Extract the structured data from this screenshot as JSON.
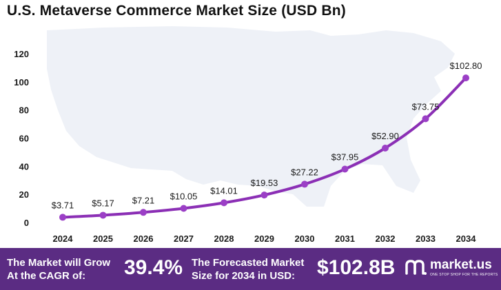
{
  "title": "U.S. Metaverse Commerce Market Size (USD Bn)",
  "chart_data": {
    "type": "line",
    "title": "U.S. Metaverse Commerce Market Size (USD Bn)",
    "categories": [
      "2024",
      "2025",
      "2026",
      "2027",
      "2028",
      "2029",
      "2030",
      "2031",
      "2032",
      "2033",
      "2034"
    ],
    "values": [
      3.71,
      5.17,
      7.21,
      10.05,
      14.01,
      19.53,
      27.22,
      37.95,
      52.9,
      73.75,
      102.8
    ],
    "data_labels": [
      "$3.71",
      "$5.17",
      "$7.21",
      "$10.05",
      "$14.01",
      "$19.53",
      "$27.22",
      "$37.95",
      "$52.90",
      "$73.75",
      "$102.80"
    ],
    "y_ticks": [
      0,
      20,
      40,
      60,
      80,
      100,
      120
    ],
    "ylim": [
      0,
      120
    ],
    "xlabel": "",
    "ylabel": "",
    "grid": false,
    "legend": "none",
    "line_color": "#8b2fb5",
    "marker_color": "#9b3fc6"
  },
  "footer": {
    "cagr_line1": "The Market will Grow",
    "cagr_line2": "At the CAGR of:",
    "cagr_value": "39.4%",
    "forecast_line1": "The Forecasted Market",
    "forecast_line2": "Size for 2034 in USD:",
    "forecast_value": "$102.8B",
    "brand_name": "market.us",
    "brand_tagline": "ONE STOP SHOP FOR THE REPORTS",
    "background_color": "#5b2c83"
  }
}
